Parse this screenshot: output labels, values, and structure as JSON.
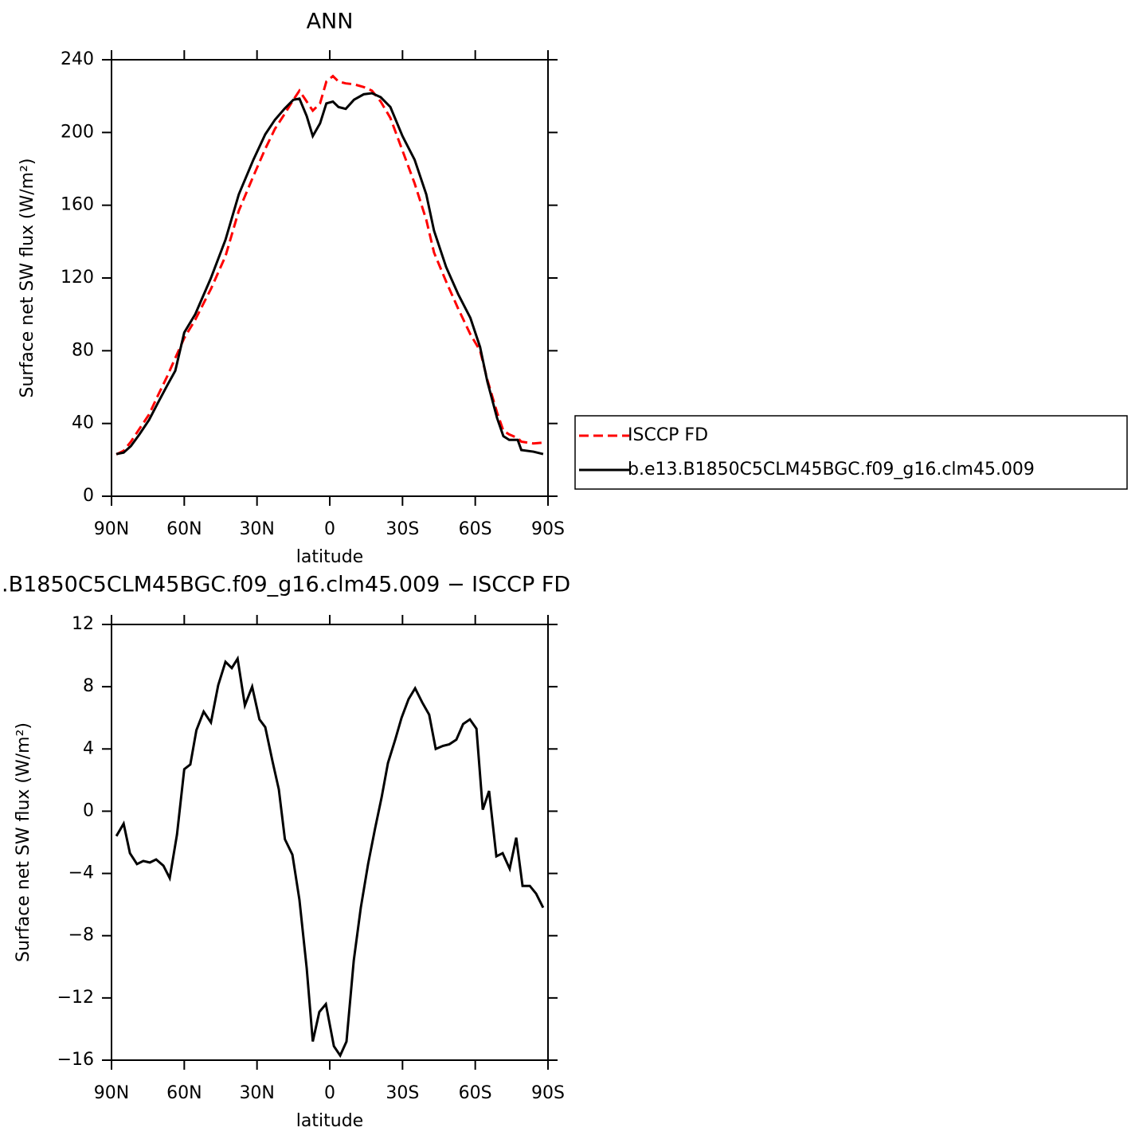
{
  "chart_data": [
    {
      "type": "line",
      "title": "ANN",
      "xlabel": "latitude",
      "ylabel": "Surface net SW flux (W/m²)",
      "xlim": [
        90,
        -90
      ],
      "ylim": [
        0,
        240
      ],
      "xticks": [
        {
          "value": 90,
          "label": "90N"
        },
        {
          "value": 60,
          "label": "60N"
        },
        {
          "value": 30,
          "label": "30N"
        },
        0,
        {
          "value": -30,
          "label": "30S"
        },
        {
          "value": -60,
          "label": "60S"
        },
        {
          "value": -90,
          "label": "90S"
        }
      ],
      "yticks": [
        0,
        40,
        80,
        120,
        160,
        200,
        240
      ],
      "legend": "right",
      "x": [
        88,
        85,
        82,
        78.5,
        74.5,
        71,
        67,
        63.7,
        60,
        55.5,
        49,
        43,
        37.5,
        31.5,
        26.6,
        22.6,
        18.7,
        15,
        12.5,
        9.5,
        7,
        4,
        1.4,
        -1.3,
        -3.6,
        -6.6,
        -10,
        -14,
        -17.4,
        -21,
        -25,
        -30,
        -35,
        -39.8,
        -43,
        -48,
        -53,
        -58,
        -62,
        -65,
        -69,
        -71.6,
        -74,
        -77.5,
        -79,
        -84,
        -88
      ],
      "series": [
        {
          "name": "ISCCP FD",
          "color": "#ff0000",
          "linestyle": "dashed",
          "values": [
            23,
            25,
            30,
            37,
            45,
            55,
            66,
            76,
            87,
            97,
            114,
            132,
            157,
            176,
            191,
            202,
            210,
            218,
            223,
            217,
            212,
            216,
            228,
            231,
            228,
            227,
            226.5,
            225,
            223,
            217,
            208,
            190,
            172,
            152,
            134,
            118,
            103,
            89,
            80,
            64,
            46,
            36,
            34,
            32,
            30,
            29,
            29.5
          ]
        },
        {
          "name": "b.e13.B1850C5CLM45BGC.f09_g16.clm45.009",
          "color": "#000000",
          "linestyle": "solid",
          "values": [
            23.2,
            24,
            27.6,
            34,
            42,
            51,
            61,
            69,
            90,
            100,
            120,
            141,
            166,
            185,
            199,
            207,
            213,
            218,
            218.6,
            209,
            198,
            205,
            216,
            217,
            214,
            213,
            218,
            221,
            221.6,
            219.4,
            214,
            198,
            185,
            166,
            146,
            126,
            111,
            98,
            82,
            63,
            43,
            33,
            31,
            31,
            25.4,
            24.5,
            23.2
          ]
        }
      ]
    },
    {
      "type": "line",
      "title": ".B1850C5CLM45BGC.f09_g16.clm45.009 − ISCCP FD",
      "xlabel": "latitude",
      "ylabel": "Surface net SW flux (W/m²)",
      "xlim": [
        90,
        -90
      ],
      "ylim": [
        -16,
        12
      ],
      "xticks": [
        {
          "value": 90,
          "label": "90N"
        },
        {
          "value": 60,
          "label": "60N"
        },
        {
          "value": 30,
          "label": "30N"
        },
        0,
        {
          "value": -30,
          "label": "30S"
        },
        {
          "value": -60,
          "label": "60S"
        },
        {
          "value": -90,
          "label": "90S"
        }
      ],
      "yticks": [
        {
          "value": -16,
          "label": "−16"
        },
        {
          "value": -12,
          "label": "−12"
        },
        {
          "value": -8,
          "label": "−8"
        },
        {
          "value": -4,
          "label": "−4"
        },
        0,
        4,
        8,
        12
      ],
      "x": [
        88,
        85,
        82.4,
        79.5,
        76.9,
        74.2,
        71.6,
        68.6,
        66,
        63,
        60,
        57.5,
        55,
        52,
        49,
        46,
        43,
        40.4,
        38,
        35,
        32,
        29,
        26.6,
        23.6,
        21,
        18.5,
        15.4,
        12.5,
        9.5,
        7,
        4.3,
        1.6,
        -1.7,
        -4.3,
        -6.9,
        -9.9,
        -12.8,
        -15.8,
        -18.7,
        -21.4,
        -24,
        -27,
        -29.6,
        -32.5,
        -35.2,
        -38.1,
        -41,
        -43.7,
        -46.7,
        -49.3,
        -52.2,
        -55,
        -57.8,
        -60.5,
        -63.1,
        -65.7,
        -68.7,
        -71.3,
        -74.2,
        -76.9,
        -79.5,
        -82.5,
        -85.1,
        -88
      ],
      "series": [
        {
          "color": "#000000",
          "linestyle": "solid",
          "values": [
            -1.6,
            -0.8,
            -2.7,
            -3.4,
            -3.2,
            -3.3,
            -3.1,
            -3.5,
            -4.3,
            -1.5,
            2.7,
            3.0,
            5.2,
            6.4,
            5.7,
            8.1,
            9.6,
            9.2,
            9.8,
            6.8,
            8.0,
            5.9,
            5.4,
            3.2,
            1.4,
            -1.8,
            -2.8,
            -5.7,
            -10.1,
            -14.8,
            -12.9,
            -12.4,
            -15.1,
            -15.7,
            -14.8,
            -9.6,
            -6.2,
            -3.4,
            -1.1,
            0.9,
            3.1,
            4.6,
            6.0,
            7.2,
            7.9,
            7.0,
            6.2,
            4.0,
            4.2,
            4.3,
            4.6,
            5.6,
            5.9,
            5.3,
            0.1,
            1.3,
            -2.9,
            -2.7,
            -3.7,
            -1.7,
            -4.8,
            -4.8,
            -5.3,
            -6.2
          ]
        }
      ]
    }
  ]
}
